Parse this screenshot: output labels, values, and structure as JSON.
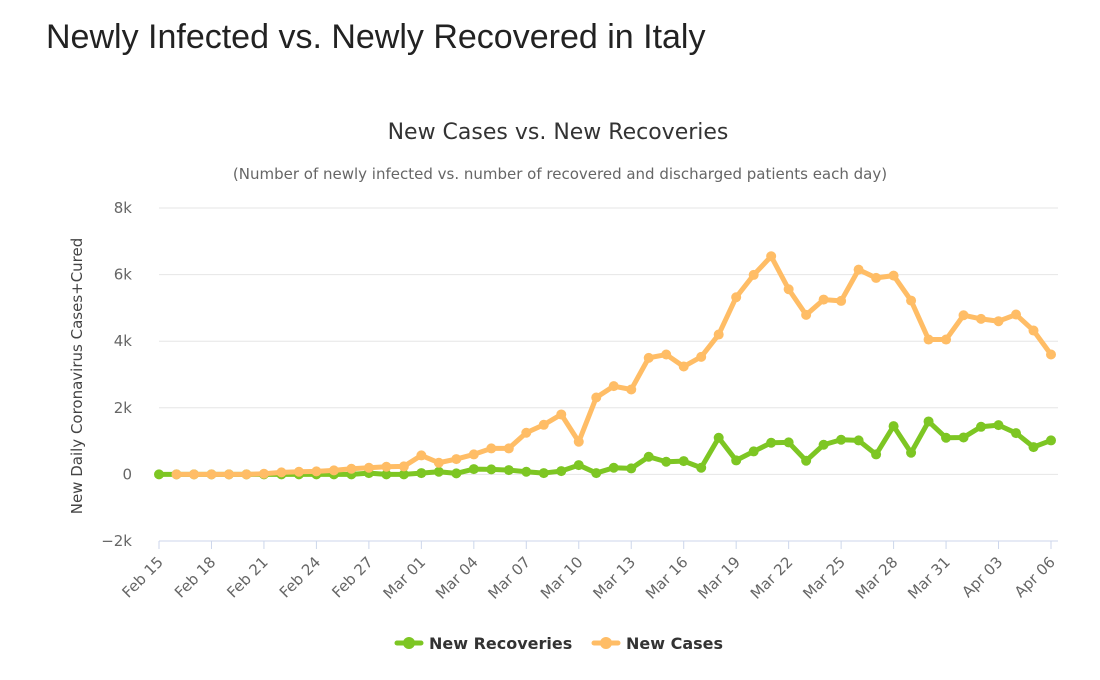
{
  "page": {
    "heading": "Newly Infected vs. Newly Recovered in Italy"
  },
  "chart_data": {
    "type": "line",
    "title": "New Cases vs. New Recoveries",
    "subtitle": "(Number of newly infected vs. number of recovered and discharged patients each day)",
    "xlabel": "",
    "ylabel": "New Daily Coronavirus Cases+Cured",
    "ylim": [
      -2000,
      8000
    ],
    "yticks": [
      -2000,
      0,
      2000,
      4000,
      6000,
      8000
    ],
    "ytick_labels": [
      "−2k",
      "0",
      "2k",
      "4k",
      "6k",
      "8k"
    ],
    "grid": true,
    "legend_position": "bottom-center",
    "x": [
      "Feb 15",
      "Feb 16",
      "Feb 17",
      "Feb 18",
      "Feb 19",
      "Feb 20",
      "Feb 21",
      "Feb 22",
      "Feb 23",
      "Feb 24",
      "Feb 25",
      "Feb 26",
      "Feb 27",
      "Feb 28",
      "Feb 29",
      "Mar 01",
      "Mar 02",
      "Mar 03",
      "Mar 04",
      "Mar 05",
      "Mar 06",
      "Mar 07",
      "Mar 08",
      "Mar 09",
      "Mar 10",
      "Mar 11",
      "Mar 12",
      "Mar 13",
      "Mar 14",
      "Mar 15",
      "Mar 16",
      "Mar 17",
      "Mar 18",
      "Mar 19",
      "Mar 20",
      "Mar 21",
      "Mar 22",
      "Mar 23",
      "Mar 24",
      "Mar 25",
      "Mar 26",
      "Mar 27",
      "Mar 28",
      "Mar 29",
      "Mar 30",
      "Mar 31",
      "Apr 01",
      "Apr 02",
      "Apr 03",
      "Apr 04",
      "Apr 05",
      "Apr 06"
    ],
    "x_tick_labels": [
      "Feb 15",
      "Feb 18",
      "Feb 21",
      "Feb 24",
      "Feb 27",
      "Mar 01",
      "Mar 04",
      "Mar 07",
      "Mar 10",
      "Mar 13",
      "Mar 16",
      "Mar 19",
      "Mar 22",
      "Mar 25",
      "Mar 28",
      "Mar 31",
      "Apr 03",
      "Apr 06"
    ],
    "series": [
      {
        "name": "New Recoveries",
        "color": "#7dc623",
        "values": [
          0,
          0,
          0,
          0,
          0,
          0,
          0,
          0,
          0,
          0,
          0,
          0,
          40,
          0,
          0,
          40,
          80,
          30,
          160,
          150,
          130,
          80,
          40,
          100,
          280,
          40,
          200,
          180,
          530,
          380,
          400,
          200,
          1100,
          420,
          690,
          950,
          960,
          410,
          890,
          1040,
          1020,
          600,
          1450,
          650,
          1590,
          1100,
          1110,
          1430,
          1480,
          1240,
          820,
          1020
        ]
      },
      {
        "name": "New Cases",
        "color": "#ffbd66",
        "values": [
          null,
          0,
          0,
          0,
          0,
          0,
          20,
          60,
          80,
          90,
          120,
          170,
          200,
          230,
          240,
          570,
          350,
          460,
          600,
          780,
          780,
          1250,
          1490,
          1800,
          980,
          2310,
          2650,
          2550,
          3500,
          3600,
          3240,
          3530,
          4200,
          5320,
          5990,
          6550,
          5560,
          4790,
          5250,
          5210,
          6150,
          5900,
          5970,
          5220,
          4050,
          4050,
          4780,
          4670,
          4600,
          4800,
          4320,
          3600
        ]
      }
    ]
  }
}
